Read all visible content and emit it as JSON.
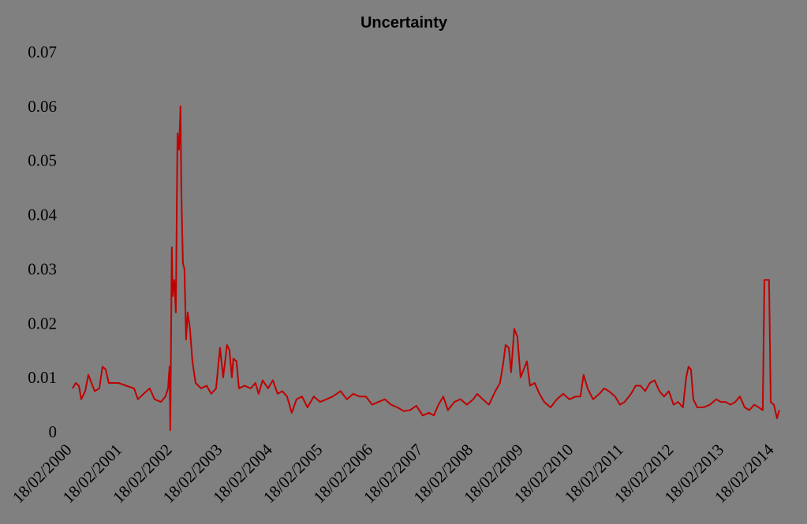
{
  "chart_data": {
    "type": "line",
    "title": "Uncertainty",
    "x": [
      "18/02/2000",
      "12/03/2000",
      "04/04/2000",
      "21/04/2000",
      "20/05/2000",
      "12/06/2000",
      "05/07/2000",
      "28/07/2000",
      "31/08/2000",
      "23/09/2000",
      "16/10/2000",
      "08/11/2000",
      "16/01/2001",
      "14/03/2001",
      "11/05/2001",
      "08/06/2001",
      "19/07/2001",
      "02/09/2001",
      "07/10/2001",
      "22/11/2001",
      "26/12/2001",
      "13/01/2002",
      "24/01/2002",
      "30/01/2002",
      "10/02/2002",
      "16/02/2002",
      "28/02/2002",
      "11/03/2002",
      "23/03/2002",
      "03/04/2002",
      "14/04/2002",
      "20/04/2002",
      "02/05/2002",
      "13/05/2002",
      "25/05/2002",
      "05/06/2002",
      "22/06/2002",
      "10/07/2002",
      "02/08/2002",
      "11/09/2002",
      "21/10/2002",
      "24/11/2002",
      "29/12/2002",
      "27/01/2003",
      "19/02/2003",
      "19/03/2003",
      "06/04/2003",
      "23/04/2003",
      "04/05/2003",
      "27/05/2003",
      "14/06/2003",
      "24/07/2003",
      "08/09/2003",
      "12/10/2003",
      "04/11/2003",
      "03/12/2003",
      "12/01/2004",
      "16/02/2004",
      "21/03/2004",
      "24/04/2004",
      "29/05/2004",
      "02/07/2004",
      "06/08/2004",
      "15/09/2004",
      "25/10/2004",
      "10/12/2004",
      "25/01/2005",
      "12/03/2005",
      "27/04/2005",
      "23/06/2005",
      "08/08/2005",
      "23/09/2005",
      "08/11/2005",
      "24/12/2005",
      "08/02/2006",
      "26/03/2006",
      "11/05/2006",
      "26/06/2006",
      "11/08/2006",
      "26/09/2006",
      "11/11/2006",
      "27/12/2006",
      "11/02/2007",
      "29/03/2007",
      "03/05/2007",
      "06/06/2007",
      "11/07/2007",
      "14/08/2007",
      "29/09/2007",
      "14/11/2007",
      "30/12/2007",
      "14/02/2008",
      "14/03/2008",
      "23/04/2008",
      "08/06/2008",
      "24/07/2008",
      "27/08/2008",
      "19/09/2008",
      "07/10/2008",
      "30/10/2008",
      "16/11/2008",
      "09/12/2008",
      "01/01/2009",
      "24/01/2009",
      "16/02/2009",
      "11/03/2009",
      "03/04/2009",
      "07/05/2009",
      "10/06/2009",
      "15/07/2009",
      "30/08/2009",
      "15/10/2009",
      "30/11/2009",
      "15/01/2010",
      "02/03/2010",
      "05/04/2010",
      "28/04/2010",
      "27/05/2010",
      "06/07/2010",
      "21/08/2010",
      "25/09/2010",
      "29/10/2010",
      "14/12/2010",
      "18/01/2011",
      "21/02/2011",
      "08/04/2011",
      "12/05/2011",
      "16/06/2011",
      "20/07/2011",
      "24/08/2011",
      "27/09/2011",
      "01/11/2011",
      "05/12/2011",
      "09/01/2012",
      "12/02/2012",
      "17/03/2012",
      "21/04/2012",
      "14/05/2012",
      "31/05/2012",
      "18/06/2012",
      "05/07/2012",
      "03/08/2012",
      "18/09/2012",
      "03/11/2012",
      "19/12/2012",
      "22/01/2013",
      "26/02/2013",
      "01/04/2013",
      "06/05/2013",
      "09/06/2013",
      "14/07/2013",
      "17/08/2013",
      "21/09/2013",
      "25/10/2013",
      "23/11/2013",
      "05/12/2013",
      "08/01/2014",
      "20/01/2014",
      "12/02/2014",
      "07/03/2014",
      "24/03/2014"
    ],
    "series": [
      {
        "color": "#c00000",
        "values": [
          0.008,
          0.009,
          0.0085,
          0.006,
          0.0075,
          0.0105,
          0.009,
          0.0075,
          0.008,
          0.012,
          0.0115,
          0.009,
          0.009,
          0.0085,
          0.008,
          0.006,
          0.007,
          0.008,
          0.006,
          0.0055,
          0.0065,
          0.008,
          0.012,
          0.0003,
          0.034,
          0.025,
          0.028,
          0.022,
          0.055,
          0.052,
          0.06,
          0.045,
          0.031,
          0.03,
          0.017,
          0.022,
          0.019,
          0.013,
          0.009,
          0.008,
          0.0085,
          0.007,
          0.008,
          0.0155,
          0.01,
          0.016,
          0.015,
          0.01,
          0.0135,
          0.013,
          0.008,
          0.0085,
          0.008,
          0.009,
          0.007,
          0.0095,
          0.008,
          0.0095,
          0.007,
          0.0075,
          0.0065,
          0.0035,
          0.006,
          0.0065,
          0.0045,
          0.0065,
          0.0055,
          0.006,
          0.0065,
          0.0075,
          0.006,
          0.007,
          0.0065,
          0.0065,
          0.005,
          0.0055,
          0.006,
          0.005,
          0.0045,
          0.0038,
          0.004,
          0.0048,
          0.003,
          0.0035,
          0.003,
          0.005,
          0.0065,
          0.004,
          0.0055,
          0.006,
          0.005,
          0.006,
          0.007,
          0.006,
          0.005,
          0.0075,
          0.009,
          0.0125,
          0.016,
          0.0155,
          0.011,
          0.019,
          0.0175,
          0.01,
          0.0115,
          0.013,
          0.0085,
          0.009,
          0.007,
          0.0055,
          0.0045,
          0.006,
          0.007,
          0.006,
          0.0065,
          0.0065,
          0.0105,
          0.008,
          0.006,
          0.007,
          0.008,
          0.0075,
          0.0065,
          0.005,
          0.0055,
          0.007,
          0.0085,
          0.0085,
          0.0075,
          0.009,
          0.0095,
          0.0075,
          0.0065,
          0.0075,
          0.005,
          0.0055,
          0.0045,
          0.01,
          0.012,
          0.0115,
          0.006,
          0.0045,
          0.0045,
          0.005,
          0.006,
          0.0055,
          0.0055,
          0.005,
          0.0055,
          0.0065,
          0.0045,
          0.004,
          0.005,
          0.0045,
          0.004,
          0.028,
          0.028,
          0.0055,
          0.005,
          0.0025,
          0.004
        ]
      }
    ],
    "xlim": [
      "18/02/2000",
      "24/03/2014"
    ],
    "xticks": [
      "18/02/2000",
      "18/02/2001",
      "18/02/2002",
      "18/02/2003",
      "18/02/2004",
      "18/02/2005",
      "18/02/2006",
      "18/02/2007",
      "18/02/2008",
      "18/02/2009",
      "18/02/2010",
      "18/02/2011",
      "18/02/2012",
      "18/02/2013",
      "18/02/2014"
    ],
    "ylim": [
      0,
      0.07
    ],
    "yticks": [
      0,
      0.01,
      0.02,
      0.03,
      0.04,
      0.05,
      0.06,
      0.07
    ],
    "grid": false
  }
}
